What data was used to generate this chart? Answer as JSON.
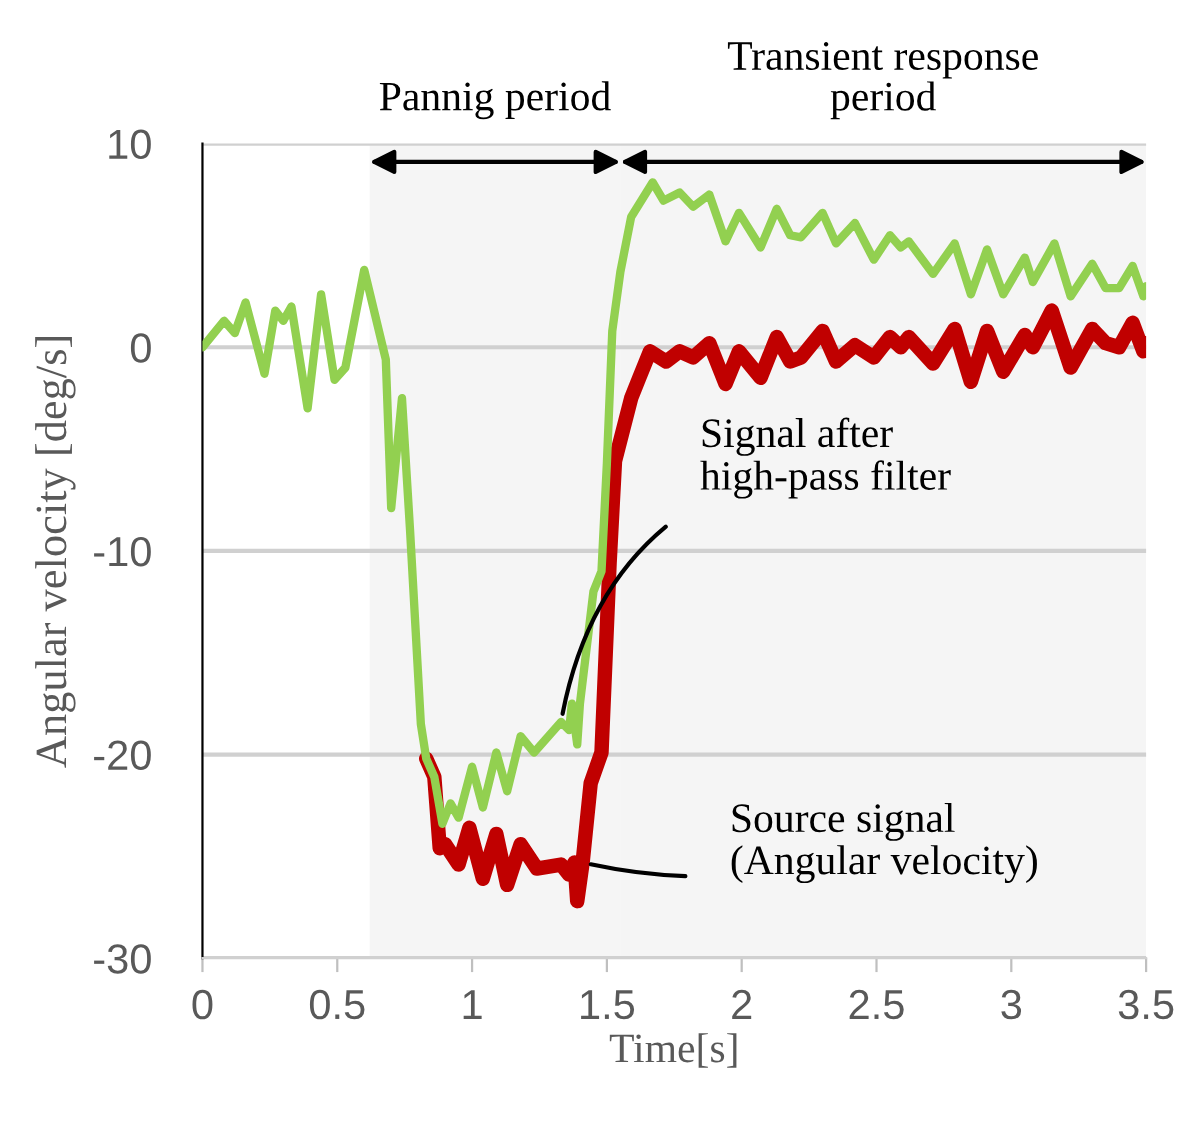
{
  "chart_data": {
    "type": "line",
    "xlabel": "Time[s]",
    "ylabel": "Angular velocity [deg/s]",
    "xlim": [
      0,
      3.5
    ],
    "xticks": [
      0,
      0.5,
      1,
      1.5,
      2,
      2.5,
      3,
      3.5
    ],
    "ylim": [
      -30,
      10
    ],
    "yticks": [
      -30,
      -20,
      -10,
      0,
      10
    ],
    "grid": "y",
    "marker": "none",
    "line_style": "solid",
    "series": [
      {
        "color": "#c00000",
        "x": [
          0.83,
          0.86,
          0.88,
          0.9,
          0.95,
          0.99,
          1.04,
          1.09,
          1.13,
          1.18,
          1.24,
          1.33,
          1.36,
          1.38,
          1.39,
          1.41,
          1.44,
          1.48,
          1.51,
          1.53,
          1.59,
          1.62,
          1.66,
          1.72,
          1.77,
          1.82,
          1.88,
          1.94,
          1.99,
          2.07,
          2.13,
          2.18,
          2.22,
          2.3,
          2.35,
          2.42,
          2.49,
          2.55,
          2.59,
          2.62,
          2.71,
          2.79,
          2.85,
          2.91,
          2.97,
          3.05,
          3.08,
          3.15,
          3.22,
          3.3,
          3.35,
          3.4,
          3.45,
          3.49,
          3.5
        ],
        "values": [
          -20.2,
          -21.1,
          -24.6,
          -24.4,
          -25.4,
          -23.6,
          -26.1,
          -23.9,
          -26.4,
          -24.4,
          -25.6,
          -25.4,
          -25.9,
          -25.3,
          -27.2,
          -25.3,
          -21.4,
          -19.9,
          -10.6,
          -5.6,
          -2.5,
          -1.5,
          -0.2,
          -0.7,
          -0.2,
          -0.5,
          0.2,
          -1.8,
          -0.2,
          -1.5,
          0.5,
          -0.7,
          -0.5,
          0.8,
          -0.7,
          0.1,
          -0.5,
          0.5,
          0,
          0.5,
          -0.8,
          0.9,
          -1.7,
          0.8,
          -1.2,
          0.6,
          0,
          1.8,
          -1.0,
          0.9,
          0.2,
          0,
          1.2,
          -0.2,
          0.2
        ]
      },
      {
        "color": "#92d050",
        "x": [
          0,
          0.08,
          0.12,
          0.16,
          0.23,
          0.27,
          0.3,
          0.33,
          0.39,
          0.44,
          0.49,
          0.53,
          0.6,
          0.68,
          0.7,
          0.74,
          0.77,
          0.81,
          0.83,
          0.86,
          0.89,
          0.92,
          0.95,
          1.0,
          1.04,
          1.09,
          1.13,
          1.18,
          1.23,
          1.33,
          1.36,
          1.37,
          1.39,
          1.4,
          1.45,
          1.48,
          1.5,
          1.52,
          1.55,
          1.59,
          1.67,
          1.71,
          1.77,
          1.82,
          1.88,
          1.94,
          1.99,
          2.07,
          2.13,
          2.18,
          2.22,
          2.3,
          2.35,
          2.42,
          2.49,
          2.55,
          2.59,
          2.62,
          2.71,
          2.79,
          2.85,
          2.91,
          2.97,
          3.05,
          3.08,
          3.16,
          3.22,
          3.3,
          3.35,
          3.4,
          3.45,
          3.49,
          3.5
        ],
        "values": [
          0,
          1.3,
          0.7,
          2.2,
          -1.3,
          1.8,
          1.3,
          2.0,
          -3.0,
          2.6,
          -1.6,
          -1.0,
          3.8,
          -0.6,
          -7.9,
          -2.5,
          -9,
          -18.5,
          -20.2,
          -21.1,
          -23.4,
          -22.4,
          -23.1,
          -20.6,
          -22.6,
          -19.9,
          -21.8,
          -19.1,
          -19.9,
          -18.4,
          -18.8,
          -17.5,
          -19.5,
          -17.5,
          -12,
          -11,
          -5.7,
          0.8,
          3.7,
          6.4,
          8.1,
          7.2,
          7.6,
          6.9,
          7.5,
          5.2,
          6.6,
          4.9,
          6.8,
          5.5,
          5.4,
          6.6,
          5.1,
          6.1,
          4.3,
          5.5,
          4.9,
          5.2,
          3.6,
          5.1,
          2.6,
          4.8,
          2.6,
          4.4,
          3.2,
          5.1,
          2.5,
          4.1,
          2.9,
          2.9,
          4.0,
          2.5,
          3.0
        ]
      }
    ],
    "bands": [
      {
        "axis": "x",
        "from": 0.62,
        "to": 1.55,
        "label": "Pannig period",
        "color": "#000000"
      },
      {
        "axis": "x",
        "from": 1.55,
        "to": 3.5,
        "label": "Transient response\nperiod",
        "color": "#000000"
      }
    ],
    "annotations": [
      {
        "text": "Signal after\nhigh-pass filter",
        "x": 1.33,
        "y": -18.4
      },
      {
        "text": "Source signal\n(Angular velocity)",
        "x": 1.41,
        "y": -25.3
      }
    ]
  }
}
